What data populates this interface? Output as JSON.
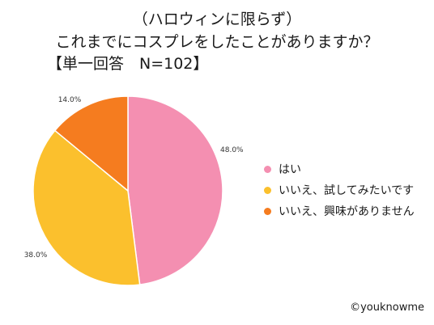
{
  "chart_data": {
    "type": "pie",
    "title": [
      "（ハロウィンに限らず）",
      "これまでにコスプレをしたことがありますか？"
    ],
    "subtitle": "【単一回答　N=102】",
    "slices": [
      {
        "label": "はい",
        "value": 48.0,
        "value_label": "48.0%",
        "color": "#f48fb1"
      },
      {
        "label": "いいえ、試してみたいです",
        "value": 38.0,
        "value_label": "38.0%",
        "color": "#fbc02d"
      },
      {
        "label": "いいえ、興味がありません",
        "value": 14.0,
        "value_label": "14.0%",
        "color": "#f57c1f"
      }
    ],
    "legend_position": "right",
    "start": "12 o'clock, clockwise"
  },
  "credit": "©youknowme"
}
